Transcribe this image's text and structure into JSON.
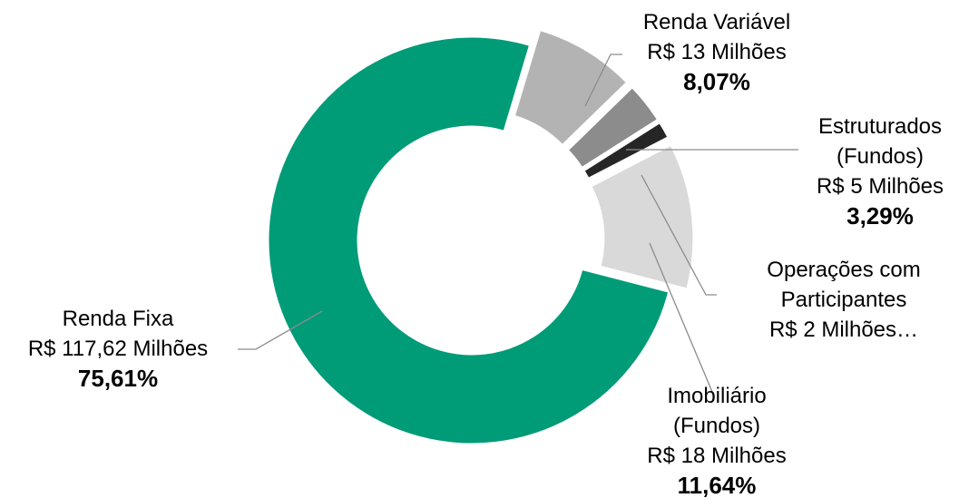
{
  "chart_data": {
    "type": "donut",
    "categories": [
      "Renda Fixa",
      "Renda Variável",
      "Estruturados (Fundos)",
      "Operações com Participantes",
      "Imobiliário (Fundos)"
    ],
    "amount_labels": [
      "R$ 117,62 Milhões",
      "R$ 13 Milhões",
      "R$ 5 Milhões",
      "R$ 2 Milhões…",
      "R$ 18 Milhões"
    ],
    "values": [
      75.61,
      8.07,
      3.29,
      1.39,
      11.64
    ],
    "value_labels": [
      "75,61%",
      "8,07%",
      "3,29%",
      null,
      "11,64%"
    ],
    "colors": [
      "#009b77",
      "#b3b3b3",
      "#8c8c8c",
      "#262626",
      "#d9d9d9"
    ]
  }
}
